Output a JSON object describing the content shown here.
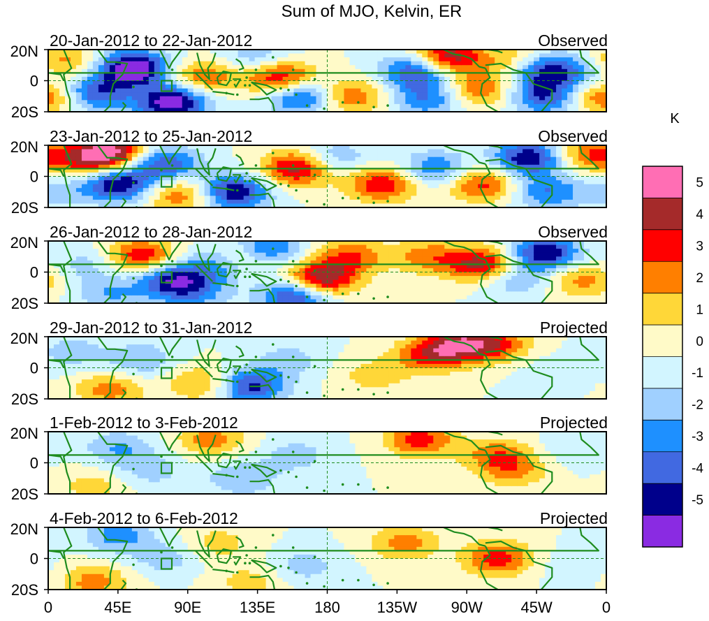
{
  "chart_data": {
    "type": "heatmap",
    "title": "Sum of MJO, Kelvin, ER",
    "units_label": "K",
    "x_ticks": [
      "0",
      "45E",
      "90E",
      "135E",
      "180",
      "135W",
      "90W",
      "45W",
      "0"
    ],
    "y_ticks": [
      "20N",
      "0",
      "20S"
    ],
    "xlim": [
      0,
      360
    ],
    "ylim": [
      -20,
      20
    ],
    "grid": "dashed equator and dateline",
    "colorbar": {
      "levels": [
        "5",
        "4",
        "3",
        "2",
        "1",
        "0",
        "-1",
        "-2",
        "-3",
        "-4",
        "-5"
      ],
      "bins": [
        {
          "range": "> 5",
          "color": "#ff6eb4"
        },
        {
          "range": "4 to 5",
          "color": "#a52a2a"
        },
        {
          "range": "3 to 4",
          "color": "#ff0000"
        },
        {
          "range": "2 to 3",
          "color": "#ff7f00"
        },
        {
          "range": "1 to 2",
          "color": "#ffd738"
        },
        {
          "range": "0 to 1",
          "color": "#fffac8"
        },
        {
          "range": "-1 to 0",
          "color": "#d2f5ff"
        },
        {
          "range": "-2 to -1",
          "color": "#a0d0ff"
        },
        {
          "range": "-3 to -2",
          "color": "#1e90ff"
        },
        {
          "range": "-4 to -3",
          "color": "#4169e1"
        },
        {
          "range": "-5 to -4",
          "color": "#00008b"
        },
        {
          "range": "< -5",
          "color": "#8a2be2"
        }
      ]
    },
    "panels": [
      {
        "period": "20-Jan-2012 to 22-Jan-2012",
        "status": "Observed",
        "scale": 1.0,
        "blobs": [
          {
            "lon": 55,
            "lat": 8,
            "value": -6.5
          },
          {
            "lon": 30,
            "lat": -8,
            "value": -4
          },
          {
            "lon": 80,
            "lat": -14,
            "value": -6
          },
          {
            "lon": 100,
            "lat": 2,
            "value": 3
          },
          {
            "lon": 150,
            "lat": 2,
            "value": 4.5
          },
          {
            "lon": 163,
            "lat": -10,
            "value": -4
          },
          {
            "lon": 135,
            "lat": 15,
            "value": -2
          },
          {
            "lon": 195,
            "lat": -10,
            "value": 3
          },
          {
            "lon": 238,
            "lat": 6,
            "value": -4.5
          },
          {
            "lon": 258,
            "lat": 15,
            "value": 5
          },
          {
            "lon": 245,
            "lat": -12,
            "value": -3
          },
          {
            "lon": 278,
            "lat": -6,
            "value": 3
          },
          {
            "lon": 305,
            "lat": 12,
            "value": 3
          },
          {
            "lon": 318,
            "lat": 8,
            "value": -5
          },
          {
            "lon": 320,
            "lat": -10,
            "value": -4
          },
          {
            "lon": 345,
            "lat": 4,
            "value": -2
          },
          {
            "lon": 358,
            "lat": -10,
            "value": 3.5
          },
          {
            "lon": 10,
            "lat": 12,
            "value": 2.5
          }
        ]
      },
      {
        "period": "23-Jan-2012 to 25-Jan-2012",
        "status": "Observed",
        "scale": 1.0,
        "blobs": [
          {
            "lon": 45,
            "lat": -5,
            "value": -5
          },
          {
            "lon": 75,
            "lat": 8,
            "value": -4
          },
          {
            "lon": 20,
            "lat": 10,
            "value": 2.5
          },
          {
            "lon": 40,
            "lat": 15,
            "value": 5.5
          },
          {
            "lon": 85,
            "lat": -12,
            "value": 3
          },
          {
            "lon": 120,
            "lat": -10,
            "value": -5
          },
          {
            "lon": 160,
            "lat": 5,
            "value": 4.5
          },
          {
            "lon": 215,
            "lat": -5,
            "value": 4
          },
          {
            "lon": 250,
            "lat": 5,
            "value": -3
          },
          {
            "lon": 280,
            "lat": -5,
            "value": 3.5
          },
          {
            "lon": 310,
            "lat": 12,
            "value": -5
          },
          {
            "lon": 322,
            "lat": -10,
            "value": -3
          },
          {
            "lon": 348,
            "lat": 14,
            "value": 3
          },
          {
            "lon": 5,
            "lat": -10,
            "value": -1.5
          },
          {
            "lon": 185,
            "lat": 12,
            "value": -2
          }
        ]
      },
      {
        "period": "26-Jan-2012 to 28-Jan-2012",
        "status": "Observed",
        "scale": 1.0,
        "blobs": [
          {
            "lon": 60,
            "lat": 10,
            "value": 4
          },
          {
            "lon": 80,
            "lat": -5,
            "value": -4.5
          },
          {
            "lon": 110,
            "lat": 5,
            "value": -3
          },
          {
            "lon": 125,
            "lat": 10,
            "value": 3
          },
          {
            "lon": 140,
            "lat": 15,
            "value": -4
          },
          {
            "lon": 175,
            "lat": -5,
            "value": 5.5
          },
          {
            "lon": 160,
            "lat": -15,
            "value": -5
          },
          {
            "lon": 195,
            "lat": 10,
            "value": 3
          },
          {
            "lon": 245,
            "lat": 10,
            "value": 2.5
          },
          {
            "lon": 280,
            "lat": 5,
            "value": 4.5
          },
          {
            "lon": 300,
            "lat": -5,
            "value": -2
          },
          {
            "lon": 320,
            "lat": 12,
            "value": -5
          },
          {
            "lon": 345,
            "lat": -5,
            "value": 2.5
          },
          {
            "lon": 25,
            "lat": 5,
            "value": -1.5
          },
          {
            "lon": 40,
            "lat": -14,
            "value": -2
          },
          {
            "lon": 95,
            "lat": -14,
            "value": -2
          }
        ]
      },
      {
        "period": "29-Jan-2012 to 31-Jan-2012",
        "status": "Projected",
        "scale": 1.0,
        "blobs": [
          {
            "lon": 100,
            "lat": -10,
            "value": 2.5
          },
          {
            "lon": 130,
            "lat": -12,
            "value": -4.5
          },
          {
            "lon": 60,
            "lat": 5,
            "value": -2
          },
          {
            "lon": 40,
            "lat": -14,
            "value": 2.5
          },
          {
            "lon": 15,
            "lat": 10,
            "value": -1.5
          },
          {
            "lon": 245,
            "lat": 8,
            "value": 3
          },
          {
            "lon": 265,
            "lat": 15,
            "value": 4
          },
          {
            "lon": 290,
            "lat": 15,
            "value": 3
          },
          {
            "lon": 210,
            "lat": -5,
            "value": 1.5
          },
          {
            "lon": 155,
            "lat": 5,
            "value": -1.5
          },
          {
            "lon": 320,
            "lat": 0,
            "value": -0.5
          }
        ]
      },
      {
        "period": "1-Feb-2012 to 3-Feb-2012",
        "status": "Projected",
        "scale": 1.0,
        "blobs": [
          {
            "lon": 45,
            "lat": 10,
            "value": -2
          },
          {
            "lon": 65,
            "lat": -5,
            "value": -1.5
          },
          {
            "lon": 105,
            "lat": 15,
            "value": 2.5
          },
          {
            "lon": 125,
            "lat": -10,
            "value": -2
          },
          {
            "lon": 160,
            "lat": 5,
            "value": -1.5
          },
          {
            "lon": 240,
            "lat": 15,
            "value": 3.5
          },
          {
            "lon": 290,
            "lat": 5,
            "value": 2.5
          },
          {
            "lon": 300,
            "lat": -5,
            "value": 2
          },
          {
            "lon": 30,
            "lat": -15,
            "value": 1.5
          },
          {
            "lon": 340,
            "lat": 10,
            "value": -1
          }
        ]
      },
      {
        "period": "4-Feb-2012 to 6-Feb-2012",
        "status": "Projected",
        "scale": 1.0,
        "blobs": [
          {
            "lon": 45,
            "lat": 15,
            "value": -2.5
          },
          {
            "lon": 75,
            "lat": 0,
            "value": -1.5
          },
          {
            "lon": 110,
            "lat": 10,
            "value": 1.5
          },
          {
            "lon": 130,
            "lat": -15,
            "value": 1.5
          },
          {
            "lon": 230,
            "lat": 10,
            "value": 2.5
          },
          {
            "lon": 290,
            "lat": 0,
            "value": 3.5
          },
          {
            "lon": 30,
            "lat": -15,
            "value": 2.5
          },
          {
            "lon": 165,
            "lat": -5,
            "value": -1.5
          },
          {
            "lon": 340,
            "lat": -5,
            "value": -0.8
          }
        ]
      }
    ]
  }
}
